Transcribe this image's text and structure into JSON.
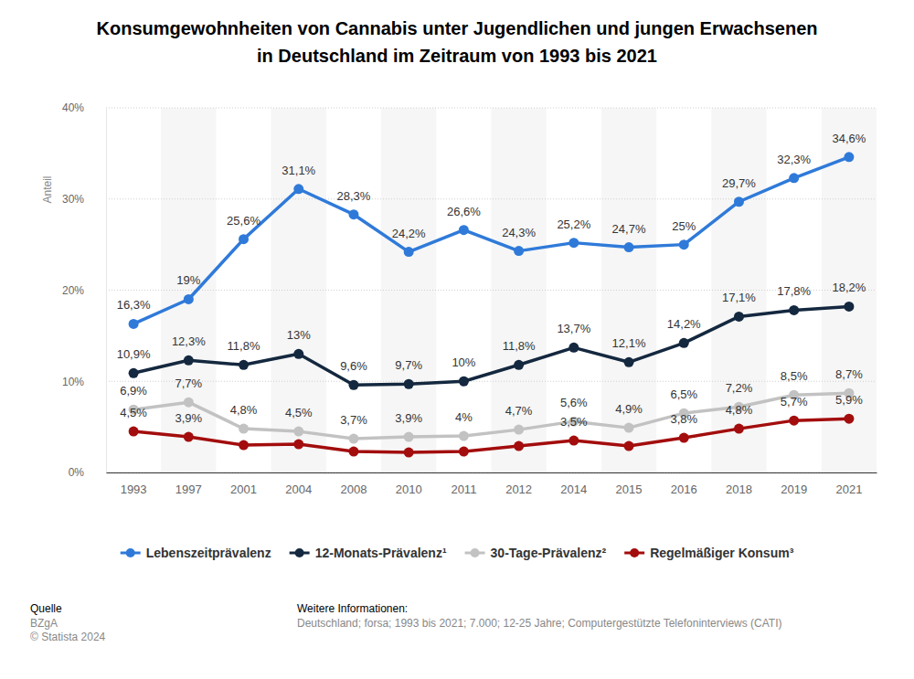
{
  "chart_data": {
    "type": "line",
    "title": [
      "Konsumgewohnheiten von Cannabis unter Jugendlichen und jungen Erwachsenen",
      "in Deutschland im Zeitraum von 1993 bis 2021"
    ],
    "y_label": "Anteil",
    "categories": [
      "1993",
      "1997",
      "2001",
      "2004",
      "2008",
      "2010",
      "2011",
      "2012",
      "2014",
      "2015",
      "2016",
      "2018",
      "2019",
      "2021"
    ],
    "ylim": [
      0,
      40
    ],
    "yticks": [
      {
        "value": 0,
        "label": "0%"
      },
      {
        "value": 10,
        "label": "10%"
      },
      {
        "value": 20,
        "label": "20%"
      },
      {
        "value": 30,
        "label": "30%"
      },
      {
        "value": 40,
        "label": "40%"
      }
    ],
    "grid": true,
    "legend": "bottom",
    "data_labels": true,
    "marker": "circle",
    "series": [
      {
        "name": "Lebenszeitprävalenz",
        "color": "#2f7ad9",
        "values": [
          16.3,
          19,
          25.6,
          31.1,
          28.3,
          24.2,
          26.6,
          24.3,
          25.2,
          24.7,
          25,
          29.7,
          32.3,
          34.6
        ],
        "value_labels": [
          "16,3%",
          "19%",
          "25,6%",
          "31,1%",
          "28,3%",
          "24,2%",
          "26,6%",
          "24,3%",
          "25,2%",
          "24,7%",
          "25%",
          "29,7%",
          "32,3%",
          "34,6%"
        ]
      },
      {
        "name": "12-Monats-Prävalenz¹",
        "color": "#14283f",
        "values": [
          10.9,
          12.3,
          11.8,
          13,
          9.6,
          9.7,
          10,
          11.8,
          13.7,
          12.1,
          14.2,
          17.1,
          17.8,
          18.2
        ],
        "value_labels": [
          "10,9%",
          "12,3%",
          "11,8%",
          "13%",
          "9,6%",
          "9,7%",
          "10%",
          "11,8%",
          "13,7%",
          "12,1%",
          "14,2%",
          "17,1%",
          "17,8%",
          "18,2%"
        ]
      },
      {
        "name": "30-Tage-Prävalenz²",
        "color": "#c2c2c2",
        "values": [
          6.9,
          7.7,
          4.8,
          4.5,
          3.7,
          3.9,
          4,
          4.7,
          5.6,
          4.9,
          6.5,
          7.2,
          8.5,
          8.7
        ],
        "value_labels": [
          "6,9%",
          "7,7%",
          "4,8%",
          "4,5%",
          "3,7%",
          "3,9%",
          "4%",
          "4,7%",
          "5,6%",
          "4,9%",
          "6,5%",
          "7,2%",
          "8,5%",
          "8,7%"
        ]
      },
      {
        "name": "Regelmäßiger Konsum³",
        "color": "#a30d0d",
        "values": [
          4.5,
          3.9,
          3.0,
          3.1,
          2.3,
          2.2,
          2.3,
          2.9,
          3.5,
          2.9,
          3.8,
          4.8,
          5.7,
          5.9
        ],
        "value_labels": [
          "4,5%",
          "3,9%",
          null,
          null,
          null,
          null,
          null,
          null,
          "3,5%",
          null,
          "3,8%",
          "4,8%",
          "5,7%",
          "5,9%"
        ]
      }
    ],
    "footer": {
      "source_title": "Quelle",
      "source": "BZgA",
      "copyright": "© Statista 2024",
      "info_title": "Weitere Informationen:",
      "info": "Deutschland; forsa; 1993 bis 2021; 7.000; 12-25 Jahre; Computergestützte Telefoninterviews (CATI)"
    }
  }
}
